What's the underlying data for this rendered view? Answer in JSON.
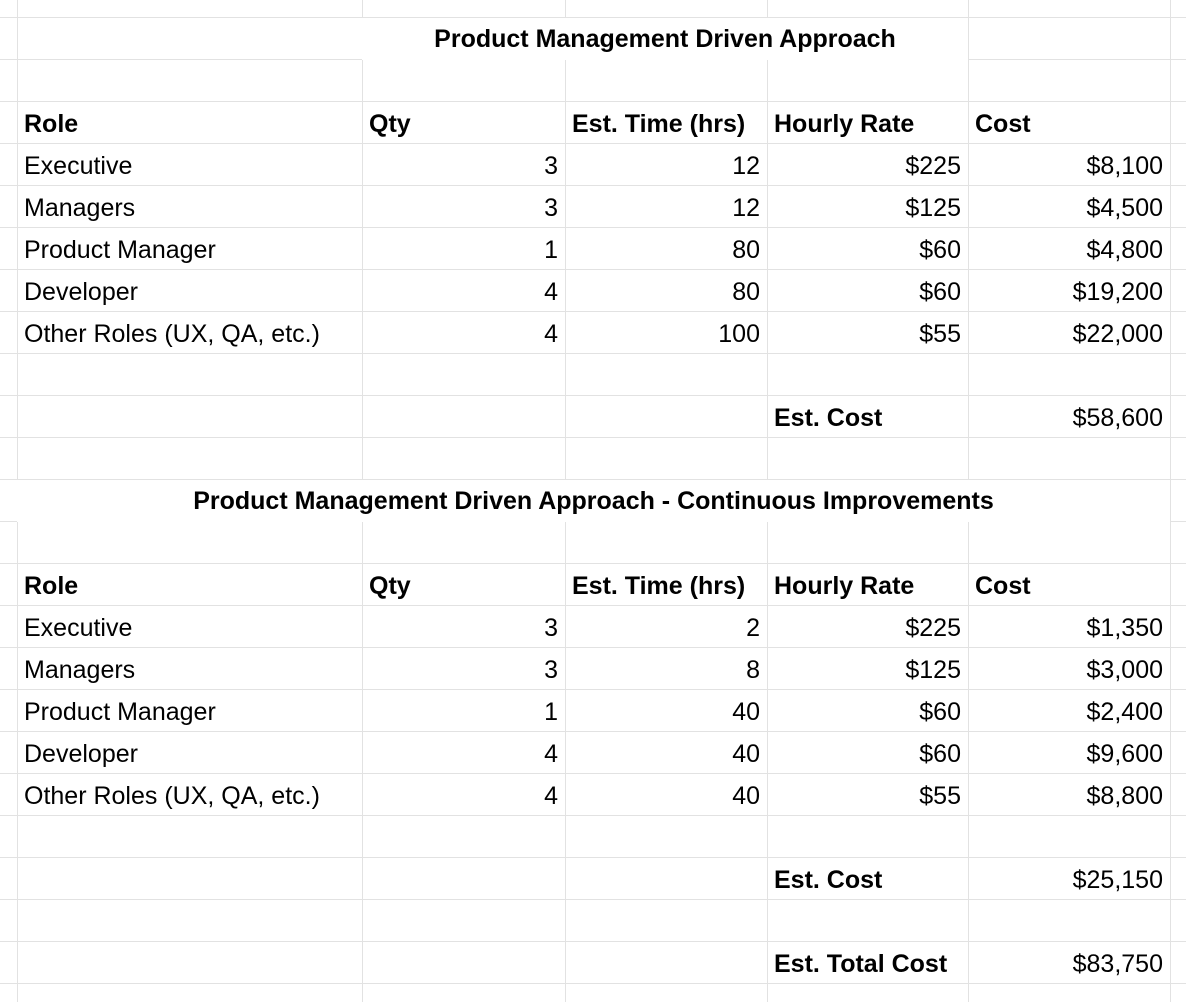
{
  "sections": [
    {
      "title": "Product Management Driven Approach",
      "headers": {
        "role": "Role",
        "qty": "Qty",
        "time": "Est. Time (hrs)",
        "rate": "Hourly Rate",
        "cost": "Cost"
      },
      "rows": [
        {
          "role": "Executive",
          "qty": "3",
          "time": "12",
          "rate": "$225",
          "cost": "$8,100"
        },
        {
          "role": "Managers",
          "qty": "3",
          "time": "12",
          "rate": "$125",
          "cost": "$4,500"
        },
        {
          "role": "Product Manager",
          "qty": "1",
          "time": "80",
          "rate": "$60",
          "cost": "$4,800"
        },
        {
          "role": "Developer",
          "qty": "4",
          "time": "80",
          "rate": "$60",
          "cost": "$19,200"
        },
        {
          "role": "Other Roles (UX, QA, etc.)",
          "qty": "4",
          "time": "100",
          "rate": "$55",
          "cost": "$22,000"
        }
      ],
      "est_cost_label": "Est. Cost",
      "est_cost_value": "$58,600"
    },
    {
      "title": "Product Management Driven Approach - Continuous Improvements",
      "headers": {
        "role": "Role",
        "qty": "Qty",
        "time": "Est. Time (hrs)",
        "rate": "Hourly Rate",
        "cost": "Cost"
      },
      "rows": [
        {
          "role": "Executive",
          "qty": "3",
          "time": "2",
          "rate": "$225",
          "cost": "$1,350"
        },
        {
          "role": "Managers",
          "qty": "3",
          "time": "8",
          "rate": "$125",
          "cost": "$3,000"
        },
        {
          "role": "Product Manager",
          "qty": "1",
          "time": "40",
          "rate": "$60",
          "cost": "$2,400"
        },
        {
          "role": "Developer",
          "qty": "4",
          "time": "40",
          "rate": "$60",
          "cost": "$9,600"
        },
        {
          "role": "Other Roles (UX, QA, etc.)",
          "qty": "4",
          "time": "40",
          "rate": "$55",
          "cost": "$8,800"
        }
      ],
      "est_cost_label": "Est. Cost",
      "est_cost_value": "$25,150"
    }
  ],
  "total": {
    "label": "Est. Total Cost",
    "value": "$83,750"
  }
}
